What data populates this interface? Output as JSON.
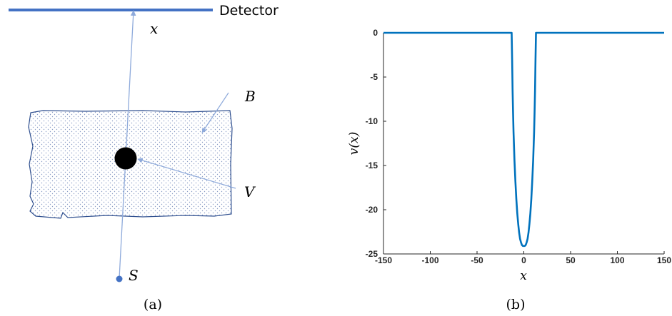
{
  "figure_a": {
    "detector_label": "Detector",
    "x_label": "x",
    "b_label": "B",
    "v_label": "V",
    "s_label": "S",
    "caption": "(a)"
  },
  "figure_b": {
    "caption": "(b)"
  },
  "colors": {
    "detector": "#4472c4",
    "ray": "#8eaadb",
    "boundary": "#2f4f8f",
    "dots": "#8a9cc4",
    "inclusion": "#000000",
    "source": "#4472c4",
    "curve": "#0072bd",
    "axis": "#262626"
  },
  "chart_data": {
    "type": "line",
    "title": "",
    "xlabel": "x",
    "ylabel": "v(x)",
    "xlim": [
      -150,
      150
    ],
    "ylim": [
      -25,
      0
    ],
    "xticks": [
      -150,
      -100,
      -50,
      0,
      50,
      100,
      150
    ],
    "yticks": [
      0,
      -5,
      -10,
      -15,
      -20,
      -25
    ],
    "grid": false,
    "series": [
      {
        "values": [
          [
            -150,
            0
          ],
          [
            -13,
            0
          ],
          [
            -12.5,
            -3
          ],
          [
            -12,
            -6.5
          ],
          [
            -11.5,
            -9
          ],
          [
            -11,
            -11.2
          ],
          [
            -10,
            -14.4
          ],
          [
            -9,
            -16.8
          ],
          [
            -8,
            -18.8
          ],
          [
            -7,
            -20.4
          ],
          [
            -6,
            -21.6
          ],
          [
            -5,
            -22.6
          ],
          [
            -4,
            -23.3
          ],
          [
            -3,
            -23.7
          ],
          [
            -2,
            -24
          ],
          [
            -1,
            -24.1
          ],
          [
            0,
            -24.1
          ],
          [
            1,
            -24.1
          ],
          [
            2,
            -24
          ],
          [
            3,
            -23.7
          ],
          [
            4,
            -23.3
          ],
          [
            5,
            -22.6
          ],
          [
            6,
            -21.6
          ],
          [
            7,
            -20.4
          ],
          [
            8,
            -18.8
          ],
          [
            9,
            -16.8
          ],
          [
            10,
            -14.4
          ],
          [
            11,
            -11.2
          ],
          [
            11.5,
            -9
          ],
          [
            12,
            -6.5
          ],
          [
            12.5,
            -3
          ],
          [
            13,
            0
          ],
          [
            150,
            0
          ]
        ]
      }
    ]
  }
}
